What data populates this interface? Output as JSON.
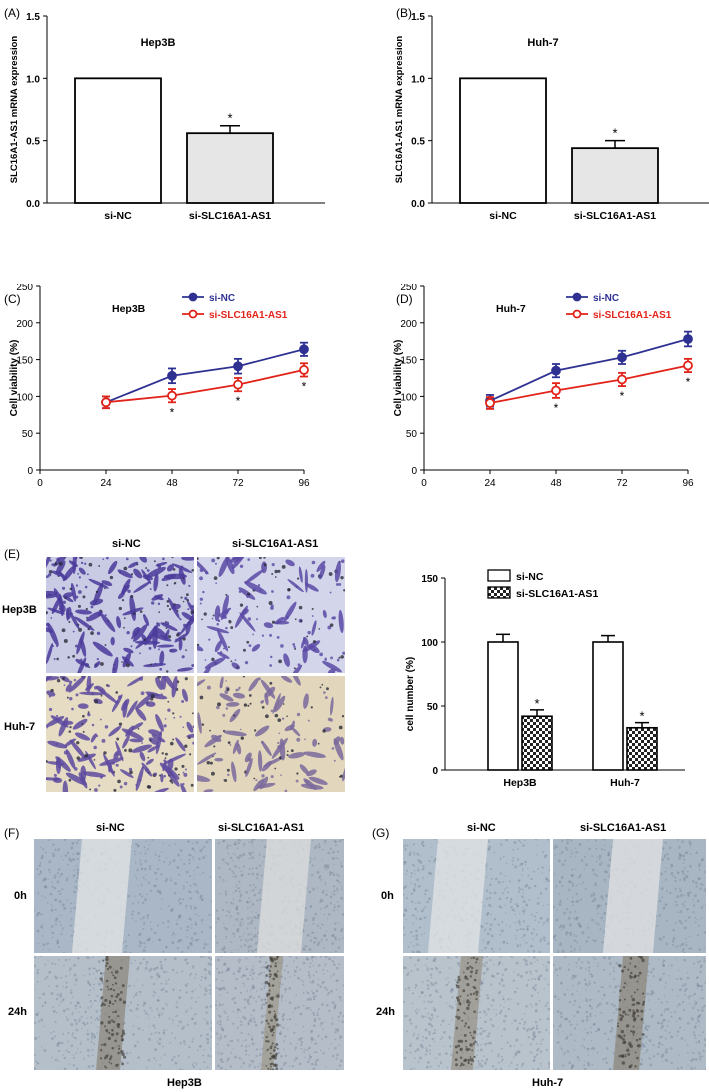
{
  "panels": {
    "A": {
      "letter": "(A)"
    },
    "B": {
      "letter": "(B)"
    },
    "C": {
      "letter": "(C)"
    },
    "D": {
      "letter": "(D)"
    },
    "E": {
      "letter": "(E)"
    },
    "F": {
      "letter": "(F)"
    },
    "G": {
      "letter": "(G)"
    }
  },
  "chart_data": [
    {
      "panel": "A",
      "type": "bar",
      "title": "Hep3B",
      "ylabel": "SLC16A1-AS1 mRNA expression",
      "categories": [
        "si-NC",
        "si-SLC16A1-AS1"
      ],
      "values": [
        1.0,
        0.56
      ],
      "errors": [
        0,
        0.06
      ],
      "significance": [
        "",
        "*"
      ],
      "ylim": [
        0,
        1.5
      ],
      "yticks": [
        "0.0",
        "0.5",
        "1.0",
        "1.5"
      ],
      "colors": [
        "#ffffff",
        "#e6e6e6"
      ]
    },
    {
      "panel": "B",
      "type": "bar",
      "title": "Huh-7",
      "ylabel": "SLC16A1-AS1 mRNA expression",
      "categories": [
        "si-NC",
        "si-SLC16A1-AS1"
      ],
      "values": [
        1.0,
        0.44
      ],
      "errors": [
        0,
        0.06
      ],
      "significance": [
        "",
        "*"
      ],
      "ylim": [
        0,
        1.5
      ],
      "yticks": [
        "0.0",
        "0.5",
        "1.0",
        "1.5"
      ],
      "colors": [
        "#ffffff",
        "#e6e6e6"
      ]
    },
    {
      "panel": "C",
      "type": "line",
      "title": "Hep3B",
      "ylabel": "Cell viability (%)",
      "x": [
        24,
        48,
        72,
        96
      ],
      "xlim": [
        0,
        96
      ],
      "xticks": [
        "0",
        "24",
        "48",
        "72",
        "96"
      ],
      "ylim": [
        0,
        250
      ],
      "yticks": [
        "0",
        "50",
        "100",
        "150",
        "200",
        "250"
      ],
      "legend_position": "top-right",
      "series": [
        {
          "name": "si-NC",
          "values": [
            92,
            128,
            141,
            164
          ],
          "errors": [
            8,
            10,
            10,
            9
          ],
          "color": "#2e3192",
          "marker": "filled-circle"
        },
        {
          "name": "si-SLC16A1-AS1",
          "values": [
            92,
            101,
            116,
            136
          ],
          "errors": [
            8,
            9,
            9,
            9
          ],
          "color": "#e2231a",
          "marker": "open-circle"
        }
      ],
      "significance": [
        "",
        "*",
        "*",
        "*"
      ]
    },
    {
      "panel": "D",
      "type": "line",
      "title": "Huh-7",
      "ylabel": "Cell viability (%)",
      "x": [
        24,
        48,
        72,
        96
      ],
      "xlim": [
        0,
        96
      ],
      "xticks": [
        "0",
        "24",
        "48",
        "72",
        "96"
      ],
      "ylim": [
        0,
        250
      ],
      "yticks": [
        "0",
        "50",
        "100",
        "150",
        "200",
        "250"
      ],
      "legend_position": "top-right",
      "series": [
        {
          "name": "si-NC",
          "values": [
            94,
            135,
            153,
            178
          ],
          "errors": [
            8,
            9,
            9,
            10
          ],
          "color": "#2e3192",
          "marker": "filled-circle"
        },
        {
          "name": "si-SLC16A1-AS1",
          "values": [
            91,
            108,
            123,
            142
          ],
          "errors": [
            8,
            10,
            9,
            9
          ],
          "color": "#e2231a",
          "marker": "open-circle"
        }
      ],
      "significance": [
        "",
        "*",
        "*",
        "*"
      ]
    },
    {
      "panel": "E",
      "type": "bar",
      "ylabel": "cell number (%)",
      "categories": [
        "Hep3B",
        "Huh-7"
      ],
      "series": [
        {
          "name": "si-NC",
          "values": [
            100,
            100
          ],
          "errors": [
            6,
            5
          ],
          "fill": "white"
        },
        {
          "name": "si-SLC16A1-AS1",
          "values": [
            42,
            33
          ],
          "errors": [
            5,
            4
          ],
          "fill": "checkered"
        }
      ],
      "significance": [
        "*",
        "*"
      ],
      "ylim": [
        0,
        150
      ],
      "yticks": [
        "0",
        "50",
        "100",
        "150"
      ],
      "legend_position": "top-left"
    }
  ],
  "panel_E_images": {
    "col_labels": [
      "si-NC",
      "si-SLC16A1-AS1"
    ],
    "row_labels": [
      "Hep3B",
      "Huh-7"
    ]
  },
  "panel_F_images": {
    "col_labels": [
      "si-NC",
      "si-SLC16A1-AS1"
    ],
    "row_labels": [
      "0h",
      "24h"
    ],
    "caption": "Hep3B"
  },
  "panel_G_images": {
    "col_labels": [
      "si-NC",
      "si-SLC16A1-AS1"
    ],
    "row_labels": [
      "0h",
      "24h"
    ],
    "caption": "Huh-7"
  }
}
